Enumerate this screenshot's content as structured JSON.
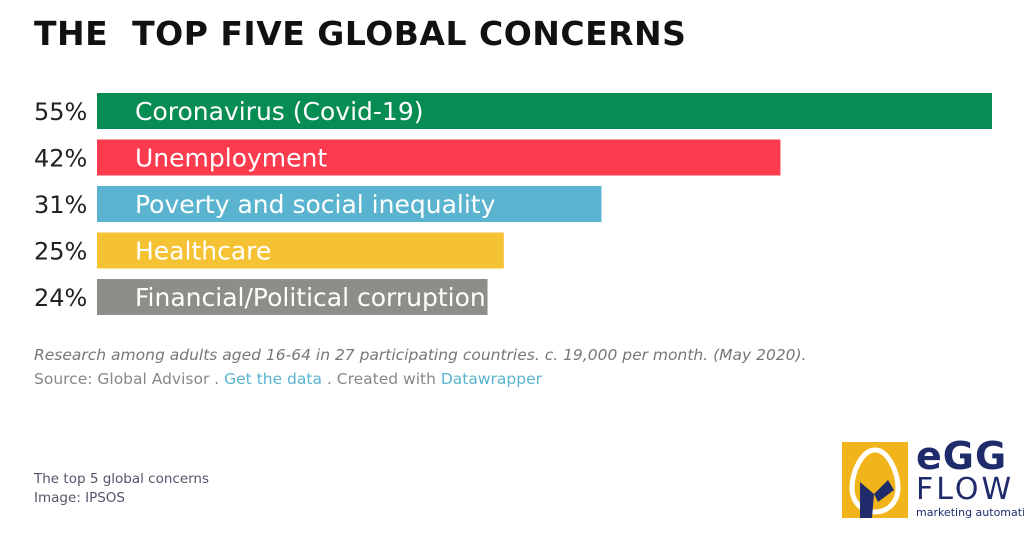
{
  "title": "THE  TOP FIVE GLOBAL CONCERNS",
  "chart_data": {
    "type": "bar",
    "orientation": "horizontal",
    "categories": [
      "Coronavirus (Covid-19)",
      "Unemployment",
      "Poverty and social inequality",
      "Healthcare",
      "Financial/Political corruption"
    ],
    "values": [
      55,
      42,
      31,
      25,
      24
    ],
    "value_labels": [
      "55%",
      "42%",
      "31%",
      "25%",
      "24%"
    ],
    "colors": [
      "#078c53",
      "#fc3b4e",
      "#5ab4cf",
      "#f5c233",
      "#8e8e89"
    ],
    "xlim": [
      0,
      55
    ],
    "grid": false
  },
  "footnote": {
    "note": "Research among adults aged 16-64 in 27 participating countries. c. 19,000 per month. (May 2020).",
    "source_prefix": "Source: Global Advisor . ",
    "source_link": "Get the data",
    "source_mid": " . Created with ",
    "source_tool": "Datawrapper",
    "link_color": "#5ab4cf"
  },
  "caption": {
    "line1": "The top 5 global concerns",
    "line2": "Image: IPSOS"
  },
  "logo": {
    "word1": "eGG",
    "word2": "FLOW",
    "tagline": "marketing automation",
    "box_color": "#f2b41b",
    "text_color": "#1f2b6b"
  }
}
